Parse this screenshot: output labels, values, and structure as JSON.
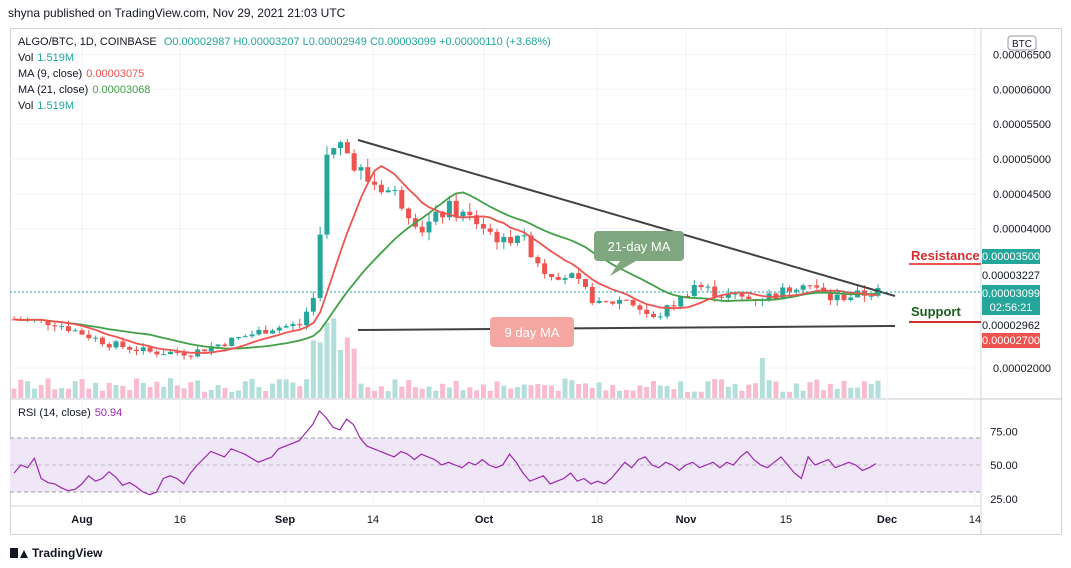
{
  "header": {
    "publisher_line": "shyna published on TradingView.com, Nov 29, 2021 21:03 UTC"
  },
  "legend": {
    "symbol": "ALGO/BTC, 1D, COINBASE",
    "ohlc": "O0.00002987  H0.00003207  L0.00002949  C0.00003099  +0.00000110 (+3.68%)",
    "vol_label": "Vol",
    "vol_value": "1.519M",
    "ma9_label": "MA (9, close)",
    "ma9_value": "0.00003075",
    "ma21_label": "MA (21, close)",
    "ma21_value": "0.00003068",
    "vol2_label": "Vol",
    "vol2_value": "1.519M",
    "rsi_label": "RSI (14, close)",
    "rsi_value": "50.94"
  },
  "annotations": {
    "ma21_callout": "21-day MA",
    "ma9_callout": "9 day MA",
    "resistance": "Resistance",
    "support": "Support"
  },
  "price_scale": {
    "currency": "BTC",
    "price_badges": [
      {
        "text": "0.00003500",
        "color": "#26a69a"
      },
      {
        "text": "0.00003227",
        "color": "#ffffff"
      },
      {
        "text": "0.00003099",
        "color": "#26a69a"
      },
      {
        "text": "02:56:21",
        "color": "#26a69a"
      },
      {
        "text": "0.00002962",
        "color": "#ffffff"
      },
      {
        "text": "0.00002700",
        "color": "#ef5350"
      }
    ]
  },
  "brand": {
    "name": "TradingView"
  },
  "colors": {
    "up": "#26a69a",
    "down": "#ef5350",
    "ma9": "#ef5350",
    "ma21": "#43a047",
    "rsi": "#9c27b0",
    "trend": "#424242",
    "resistance": "#ef5350",
    "support": "#d32f2f"
  },
  "chart_data": {
    "type": "candlestick",
    "y_ticks": [
      "0.00006500",
      "0.00006000",
      "0.00005500",
      "0.00005000",
      "0.00004500",
      "0.00004000",
      "0.00002000"
    ],
    "ylim": [
      1.6e-05,
      6.65e-05
    ],
    "x_ticks": [
      "Aug",
      "16",
      "Sep",
      "14",
      "Oct",
      "18",
      "Nov",
      "15",
      "Dec",
      "14"
    ],
    "rsi": {
      "ticks": [
        "75.00",
        "50.00",
        "25.00"
      ],
      "upper_band": 70,
      "lower_band": 30,
      "values": [
        44,
        50,
        48,
        55,
        40,
        37,
        36,
        33,
        31,
        32,
        36,
        42,
        38,
        40,
        45,
        41,
        35,
        37,
        34,
        30,
        28,
        30,
        40,
        42,
        40,
        36,
        44,
        50,
        55,
        60,
        58,
        56,
        62,
        60,
        58,
        55,
        52,
        54,
        56,
        62,
        64,
        66,
        68,
        74,
        80,
        90,
        85,
        78,
        76,
        84,
        80,
        70,
        64,
        62,
        60,
        58,
        56,
        60,
        58,
        54,
        58,
        56,
        54,
        50,
        52,
        50,
        48,
        52,
        50,
        54,
        50,
        48,
        50,
        58,
        52,
        44,
        38,
        40,
        42,
        36,
        38,
        40,
        44,
        38,
        40,
        36,
        38,
        36,
        40,
        46,
        52,
        48,
        54,
        56,
        50,
        48,
        52,
        50,
        46,
        50,
        52,
        48,
        50,
        52,
        48,
        52,
        50,
        56,
        60,
        54,
        50,
        48,
        52,
        56,
        50,
        44,
        40,
        56,
        50,
        52,
        54,
        48,
        50,
        52,
        50,
        46,
        48,
        51
      ]
    }
  }
}
